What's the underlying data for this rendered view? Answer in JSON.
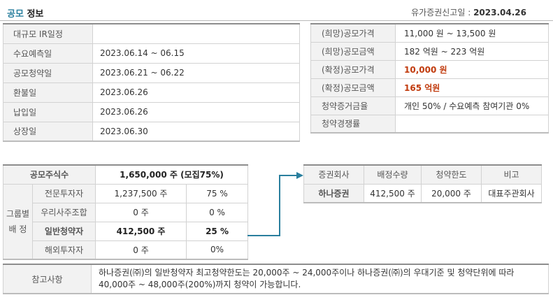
{
  "header": {
    "title_accent": "공모",
    "title_rest": "정보",
    "filing_label": "유가증권신고일 :",
    "filing_date": "2023.04.26"
  },
  "schedule": [
    {
      "label": "대규모 IR일정",
      "value": ""
    },
    {
      "label": "수요예측일",
      "value": "2023.06.14 ~ 06.15"
    },
    {
      "label": "공모청약일",
      "value": "2023.06.21 ~ 06.22"
    },
    {
      "label": "환불일",
      "value": "2023.06.26"
    },
    {
      "label": "납입일",
      "value": "2023.06.26"
    },
    {
      "label": "상장일",
      "value": "2023.06.30"
    }
  ],
  "pricing": [
    {
      "label": "(희망)공모가격",
      "value": "11,000 원 ~ 13,500 원"
    },
    {
      "label": "(희망)공모금액",
      "value": "182 억원 ~ 223 억원"
    },
    {
      "label": "(확정)공모가격",
      "value": "10,000 원"
    },
    {
      "label": "(확정)공모금액",
      "value": "165 억원"
    },
    {
      "label": "청약증거금율",
      "value": "개인 50% / 수요예측 참여기관 0%"
    },
    {
      "label": "청약경쟁률",
      "value": ""
    }
  ],
  "shares": {
    "total_label": "공모주식수",
    "total_value": "1,650,000 주 (모집75%)",
    "group_label_1": "그룹별",
    "group_label_2": "배 정",
    "rows": [
      {
        "name": "전문투자자",
        "qty": "1,237,500 주",
        "pct": "75 %"
      },
      {
        "name": "우리사주조합",
        "qty": "0 주",
        "pct": "0 %"
      },
      {
        "name": "일반청약자",
        "qty": "412,500 주",
        "pct": "25 %"
      },
      {
        "name": "해외투자자",
        "qty": "0 주",
        "pct": "0%"
      }
    ]
  },
  "underwriters": {
    "headers": [
      "증권회사",
      "배정수량",
      "청약한도",
      "비고"
    ],
    "rows": [
      {
        "company": "하나증권",
        "qty": "412,500 주",
        "limit": "20,000 주",
        "note": "대표주관회사"
      }
    ]
  },
  "notes": {
    "label": "참고사항",
    "text": "하나증권(㈜)의 일반청약자 최고청약한도는 20,000주 ~ 24,000주이나 하나증권(㈜)의 우대기준 및 청약단위에 따라 40,000주 ~ 48,000주(200%)까지 청약이 가능합니다."
  },
  "colors": {
    "accent": "#2a7f9e",
    "highlight": "#c13b0d",
    "label_bg": "#f2f2f2"
  }
}
